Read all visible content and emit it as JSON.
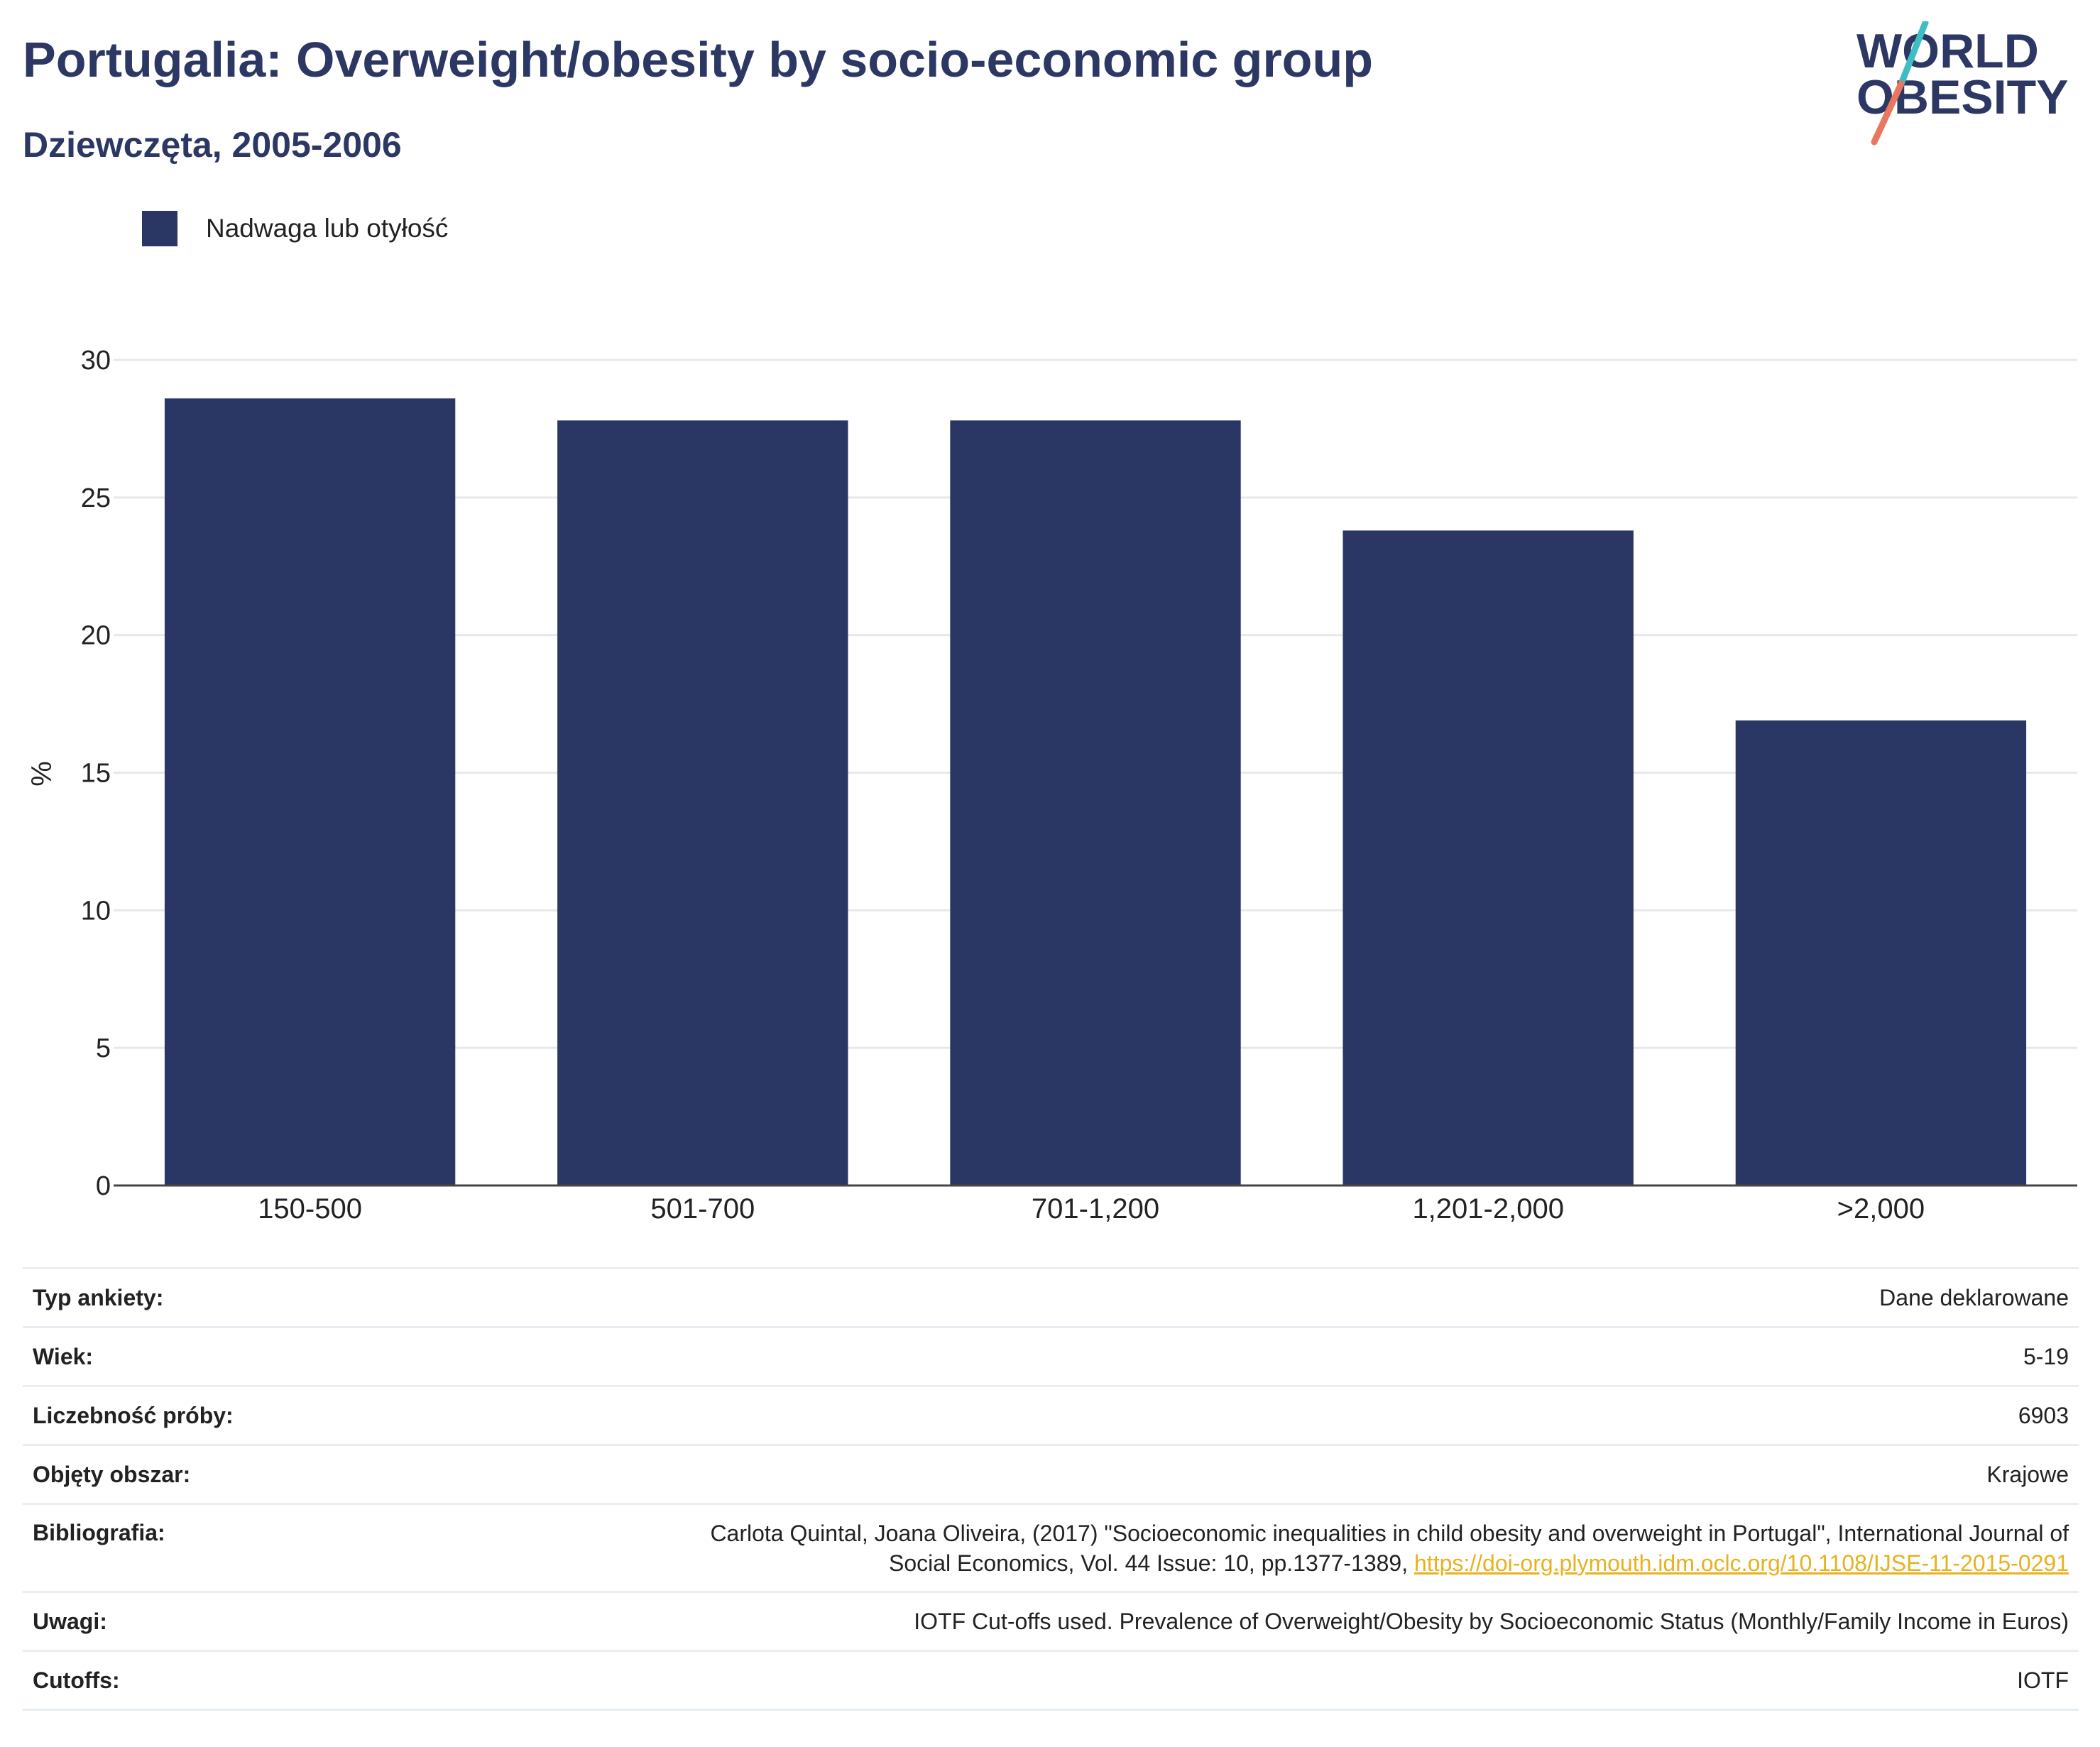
{
  "title": "Portugalia: Overweight/obesity by socio-economic group",
  "subtitle": "Dziewczęta, 2005-2006",
  "logo": {
    "line1": "WORLD",
    "line2": "OBESITY",
    "slash_colors": [
      "#3ebdc4",
      "#e9765e"
    ]
  },
  "legend": {
    "label": "Nadwaga lub otyłość",
    "color": "#2a3663"
  },
  "chart_data": {
    "type": "bar",
    "categories": [
      "150-500",
      "501-700",
      "701-1,200",
      "1,201-2,000",
      ">2,000"
    ],
    "series": [
      {
        "name": "Nadwaga lub otyłość",
        "values": [
          28.6,
          27.8,
          27.8,
          23.8,
          16.9
        ],
        "color": "#2a3663"
      }
    ],
    "ylabel": "%",
    "xlabel": "",
    "ylim": [
      0,
      30
    ],
    "yticks": [
      0,
      5,
      10,
      15,
      20,
      25,
      30
    ],
    "grid": true,
    "legend_position": "top-left"
  },
  "info": {
    "survey_type": {
      "label": "Typ ankiety:",
      "value": "Dane deklarowane"
    },
    "age": {
      "label": "Wiek:",
      "value": "5-19"
    },
    "sample_size": {
      "label": "Liczebność próby:",
      "value": "6903"
    },
    "area": {
      "label": "Objęty obszar:",
      "value": "Krajowe"
    },
    "bibliography": {
      "label": "Bibliografia:",
      "line1": "Carlota Quintal, Joana Oliveira, (2017) \"Socioeconomic inequalities in child obesity and overweight in Portugal\", International Journal of",
      "line2": "Social Economics, Vol. 44 Issue: 10, pp.1377-1389, ",
      "link": "https://doi-org.plymouth.idm.oclc.org/10.1108/IJSE-11-2015-0291"
    },
    "notes": {
      "label": "Uwagi:",
      "value": "IOTF Cut-offs used. Prevalence of Overweight/Obesity by Socioeconomic Status (Monthly/Family Income in Euros)"
    },
    "cutoffs": {
      "label": "Cutoffs:",
      "value": "IOTF"
    }
  }
}
